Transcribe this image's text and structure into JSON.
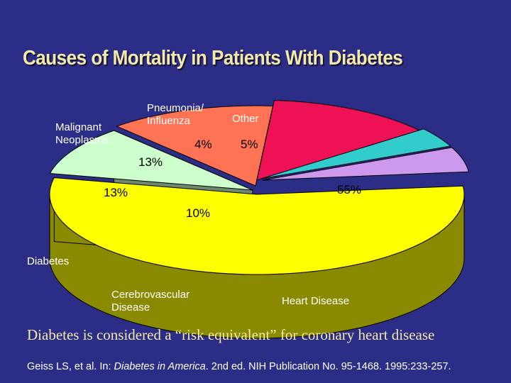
{
  "slide": {
    "title": "Causes of Mortality in Patients With Diabetes",
    "caption": "Diabetes is considered a “risk equivalent” for coronary heart disease",
    "citation": {
      "before": "Geiss LS, et al. In: ",
      "italic": "Diabetes in America",
      "after": ". 2nd ed. NIH Publication No. 95-1468. 1995:233-257."
    },
    "background_color": "#2b2d87",
    "title_color": "#f5e9a9"
  },
  "chart_data": {
    "type": "pie",
    "style": "3d exploded",
    "slices": [
      {
        "name": "Heart Disease",
        "value": 55,
        "label": "55%",
        "color": "#ffff00",
        "side_color": "#8a8a00"
      },
      {
        "name": "Cerebrovascular\nDisease",
        "value": 10,
        "label": "10%",
        "color": "#ccffcc",
        "side_color": "#6e8a6e"
      },
      {
        "name": "Diabetes",
        "value": 13,
        "label": "13%",
        "color": "#ff7355",
        "side_color": "#8a3e30"
      },
      {
        "name": "Malignant\nNeoplasms",
        "value": 13,
        "label": "13%",
        "color": "#ee1155",
        "side_color": "#800a2e"
      },
      {
        "name": "Pneumonia/\nInfluenza",
        "value": 4,
        "label": "4%",
        "color": "#33cccc",
        "side_color": "#1c7070"
      },
      {
        "name": "Other",
        "value": 5,
        "label": "5%",
        "color": "#cc99ee",
        "side_color": "#6e5280"
      }
    ]
  }
}
